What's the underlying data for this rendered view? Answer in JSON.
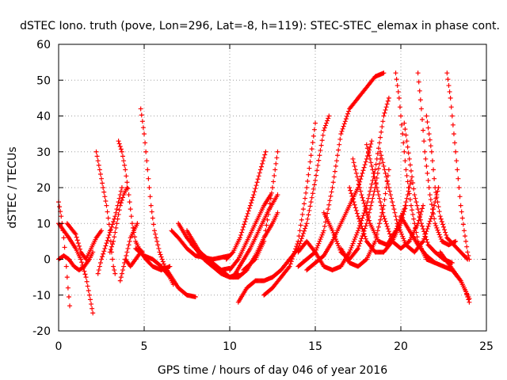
{
  "chart_data": {
    "type": "scatter",
    "title": "dSTEC Iono. truth (pove, Lon=296, Lat=-8, h=119): STEC-STEC_elemax in phase cont.",
    "xlabel": "GPS time / hours of day 046 of year 2016",
    "ylabel": "dSTEC  / TECUs",
    "xlim": [
      0,
      25
    ],
    "ylim": [
      -20,
      60
    ],
    "xticks": [
      0,
      5,
      10,
      15,
      20,
      25
    ],
    "yticks": [
      -20,
      -10,
      0,
      10,
      20,
      30,
      40,
      50,
      60
    ],
    "grid": true,
    "marker": "plus",
    "color": "#ff0000",
    "series": [
      {
        "points": [
          [
            0.0,
            16
          ],
          [
            0.15,
            12
          ],
          [
            0.3,
            6
          ],
          [
            0.45,
            -2
          ],
          [
            0.55,
            -8
          ],
          [
            0.65,
            -13
          ]
        ]
      },
      {
        "points": [
          [
            0.0,
            10
          ],
          [
            0.3,
            8
          ],
          [
            0.6,
            6
          ],
          [
            1.0,
            3
          ],
          [
            1.3,
            0
          ],
          [
            1.6,
            -5
          ],
          [
            1.8,
            -10
          ],
          [
            2.0,
            -15
          ]
        ]
      },
      {
        "points": [
          [
            0.0,
            0
          ],
          [
            0.3,
            1
          ],
          [
            0.6,
            0
          ],
          [
            0.9,
            -2
          ],
          [
            1.2,
            -3
          ],
          [
            1.5,
            -2
          ],
          [
            1.8,
            0
          ],
          [
            2.0,
            2
          ]
        ]
      },
      {
        "points": [
          [
            0.5,
            10
          ],
          [
            1.0,
            7
          ],
          [
            1.3,
            2
          ],
          [
            1.6,
            0
          ],
          [
            1.8,
            2
          ],
          [
            2.0,
            4
          ],
          [
            2.2,
            6
          ],
          [
            2.5,
            8
          ]
        ]
      },
      {
        "points": [
          [
            2.2,
            30
          ],
          [
            2.4,
            25
          ],
          [
            2.6,
            20
          ],
          [
            2.8,
            15
          ],
          [
            3.0,
            8
          ],
          [
            3.1,
            2
          ],
          [
            3.2,
            -2
          ],
          [
            3.3,
            -4
          ]
        ]
      },
      {
        "points": [
          [
            2.3,
            -4
          ],
          [
            2.5,
            0
          ],
          [
            2.7,
            3
          ],
          [
            2.9,
            6
          ],
          [
            3.1,
            9
          ],
          [
            3.3,
            12
          ],
          [
            3.5,
            16
          ],
          [
            3.7,
            20
          ]
        ]
      },
      {
        "points": [
          [
            3.5,
            33
          ],
          [
            3.7,
            30
          ],
          [
            3.9,
            25
          ],
          [
            4.1,
            18
          ],
          [
            4.3,
            10
          ],
          [
            4.5,
            5
          ],
          [
            4.7,
            3
          ],
          [
            4.9,
            2
          ]
        ]
      },
      {
        "points": [
          [
            3.6,
            -6
          ],
          [
            3.8,
            -2
          ],
          [
            4.0,
            2
          ],
          [
            4.2,
            6
          ],
          [
            4.4,
            8
          ],
          [
            4.6,
            10
          ]
        ]
      },
      {
        "points": [
          [
            3.0,
            2
          ],
          [
            3.2,
            5
          ],
          [
            3.4,
            10
          ],
          [
            3.6,
            15
          ],
          [
            3.8,
            18
          ],
          [
            4.0,
            20
          ]
        ]
      },
      {
        "points": [
          [
            3.9,
            0
          ],
          [
            4.2,
            -2
          ],
          [
            4.5,
            0
          ],
          [
            4.8,
            2
          ],
          [
            5.1,
            0
          ],
          [
            5.5,
            -2
          ],
          [
            6.0,
            -3
          ],
          [
            6.5,
            -2
          ]
        ]
      },
      {
        "points": [
          [
            4.8,
            42
          ],
          [
            5.0,
            35
          ],
          [
            5.2,
            25
          ],
          [
            5.4,
            15
          ],
          [
            5.6,
            8
          ],
          [
            5.9,
            2
          ],
          [
            6.2,
            -2
          ],
          [
            6.6,
            -5
          ],
          [
            7.0,
            -8
          ],
          [
            7.5,
            -10
          ],
          [
            8.0,
            -10.5
          ]
        ]
      },
      {
        "points": [
          [
            4.5,
            3
          ],
          [
            5.0,
            1
          ],
          [
            5.5,
            0
          ],
          [
            6.0,
            -2
          ],
          [
            6.5,
            -5
          ],
          [
            6.7,
            -7
          ]
        ]
      },
      {
        "points": [
          [
            6.6,
            8
          ],
          [
            7.0,
            6
          ],
          [
            7.5,
            3
          ],
          [
            8.0,
            1
          ],
          [
            8.5,
            0.5
          ],
          [
            9.0,
            0
          ],
          [
            9.5,
            0.5
          ],
          [
            10.0,
            1
          ]
        ]
      },
      {
        "points": [
          [
            7.0,
            10
          ],
          [
            7.5,
            6
          ],
          [
            8.0,
            3
          ],
          [
            8.5,
            0
          ],
          [
            9.0,
            -2
          ],
          [
            9.5,
            -3
          ],
          [
            10.0,
            -2.5
          ]
        ]
      },
      {
        "points": [
          [
            7.5,
            8
          ],
          [
            8.0,
            4
          ],
          [
            8.5,
            0
          ],
          [
            9.0,
            -2
          ],
          [
            9.5,
            -4
          ],
          [
            10.0,
            -5
          ],
          [
            10.5,
            -4
          ]
        ]
      },
      {
        "points": [
          [
            7.8,
            4
          ],
          [
            8.5,
            1
          ],
          [
            9.0,
            -1
          ],
          [
            9.5,
            -3
          ],
          [
            10.0,
            -5
          ],
          [
            10.5,
            -5
          ],
          [
            11.0,
            -3
          ]
        ]
      },
      {
        "points": [
          [
            9.8,
            0
          ],
          [
            10.2,
            2
          ],
          [
            10.6,
            6
          ],
          [
            11.0,
            12
          ],
          [
            11.4,
            18
          ],
          [
            11.8,
            25
          ],
          [
            12.1,
            30
          ]
        ]
      },
      {
        "points": [
          [
            10.0,
            -3
          ],
          [
            10.5,
            0
          ],
          [
            11.0,
            5
          ],
          [
            11.5,
            10
          ],
          [
            12.0,
            15
          ],
          [
            12.4,
            18
          ]
        ]
      },
      {
        "points": [
          [
            10.2,
            -5
          ],
          [
            10.7,
            -1
          ],
          [
            11.2,
            3
          ],
          [
            11.7,
            8
          ],
          [
            12.2,
            13
          ],
          [
            12.8,
            18
          ]
        ]
      },
      {
        "points": [
          [
            10.5,
            -5
          ],
          [
            11.0,
            -3
          ],
          [
            11.5,
            1
          ],
          [
            12.0,
            6
          ],
          [
            12.5,
            10
          ],
          [
            12.8,
            13
          ]
        ]
      },
      {
        "points": [
          [
            10.8,
            -3
          ],
          [
            11.5,
            0
          ],
          [
            12.0,
            5
          ],
          [
            12.5,
            20
          ],
          [
            12.8,
            30
          ]
        ]
      },
      {
        "points": [
          [
            10.5,
            -12
          ],
          [
            11.0,
            -8
          ],
          [
            11.5,
            -6
          ],
          [
            12.0,
            -6
          ],
          [
            12.5,
            -5
          ]
        ]
      },
      {
        "points": [
          [
            12.0,
            -10
          ],
          [
            12.5,
            -8
          ],
          [
            13.0,
            -5
          ],
          [
            13.5,
            -2
          ],
          [
            14.0,
            5
          ],
          [
            14.5,
            20
          ],
          [
            15.0,
            38
          ]
        ]
      },
      {
        "points": [
          [
            12.5,
            -5
          ],
          [
            13.0,
            -3
          ],
          [
            13.5,
            0
          ],
          [
            14.0,
            3
          ],
          [
            14.5,
            10
          ],
          [
            15.0,
            22
          ],
          [
            15.5,
            36
          ],
          [
            15.8,
            40
          ]
        ]
      },
      {
        "points": [
          [
            14.0,
            -2
          ],
          [
            14.5,
            0
          ],
          [
            15.0,
            2
          ],
          [
            15.5,
            8
          ],
          [
            16.0,
            20
          ],
          [
            16.5,
            35
          ],
          [
            17.0,
            42
          ],
          [
            17.5,
            45
          ],
          [
            18.0,
            48
          ],
          [
            18.5,
            51
          ],
          [
            19.0,
            52
          ]
        ]
      },
      {
        "points": [
          [
            14.0,
            2
          ],
          [
            14.5,
            5
          ],
          [
            15.0,
            2
          ],
          [
            15.5,
            -2
          ],
          [
            16.0,
            -3
          ],
          [
            16.5,
            -2
          ],
          [
            17.0,
            2
          ],
          [
            17.5,
            8
          ],
          [
            18.0,
            15
          ],
          [
            18.5,
            25
          ],
          [
            19.0,
            40
          ],
          [
            19.3,
            45
          ]
        ]
      },
      {
        "points": [
          [
            14.5,
            -3
          ],
          [
            15.0,
            -1
          ],
          [
            15.5,
            1
          ],
          [
            16.0,
            5
          ],
          [
            16.5,
            10
          ],
          [
            17.0,
            15
          ],
          [
            17.5,
            20
          ],
          [
            18.0,
            28
          ],
          [
            18.3,
            33
          ]
        ]
      },
      {
        "points": [
          [
            15.5,
            13
          ],
          [
            16.0,
            8
          ],
          [
            16.5,
            2
          ],
          [
            17.0,
            0
          ],
          [
            17.5,
            3
          ],
          [
            18.0,
            10
          ],
          [
            18.5,
            20
          ],
          [
            18.8,
            28
          ]
        ]
      },
      {
        "points": [
          [
            16.5,
            3
          ],
          [
            17.0,
            -1
          ],
          [
            17.5,
            -2
          ],
          [
            18.0,
            0
          ],
          [
            18.5,
            5
          ],
          [
            19.0,
            15
          ],
          [
            19.3,
            25
          ]
        ]
      },
      {
        "points": [
          [
            17.0,
            20
          ],
          [
            17.5,
            12
          ],
          [
            18.0,
            5
          ],
          [
            18.5,
            2
          ],
          [
            19.0,
            2
          ],
          [
            19.5,
            5
          ],
          [
            20.0,
            10
          ],
          [
            20.3,
            15
          ]
        ]
      },
      {
        "points": [
          [
            17.2,
            28
          ],
          [
            17.7,
            18
          ],
          [
            18.2,
            10
          ],
          [
            18.7,
            5
          ],
          [
            19.2,
            4
          ],
          [
            19.7,
            8
          ],
          [
            20.2,
            14
          ],
          [
            20.6,
            22
          ]
        ]
      },
      {
        "points": [
          [
            18.0,
            32
          ],
          [
            18.5,
            22
          ],
          [
            19.0,
            12
          ],
          [
            19.5,
            5
          ],
          [
            20.0,
            3
          ],
          [
            20.5,
            5
          ],
          [
            21.0,
            10
          ],
          [
            21.3,
            15
          ]
        ]
      },
      {
        "points": [
          [
            18.8,
            30
          ],
          [
            19.3,
            20
          ],
          [
            19.8,
            10
          ],
          [
            20.3,
            4
          ],
          [
            20.8,
            2
          ],
          [
            21.3,
            5
          ],
          [
            21.8,
            12
          ],
          [
            22.2,
            20
          ]
        ]
      },
      {
        "points": [
          [
            19.7,
            52
          ],
          [
            19.9,
            45
          ],
          [
            20.1,
            35
          ],
          [
            20.3,
            25
          ],
          [
            20.6,
            15
          ],
          [
            21.0,
            5
          ],
          [
            21.5,
            0
          ],
          [
            22.0,
            -1
          ]
        ]
      },
      {
        "points": [
          [
            20.2,
            38
          ],
          [
            20.5,
            28
          ],
          [
            20.8,
            18
          ],
          [
            21.2,
            10
          ],
          [
            21.6,
            4
          ],
          [
            22.0,
            2
          ],
          [
            22.5,
            0
          ],
          [
            23.0,
            -1
          ]
        ]
      },
      {
        "points": [
          [
            21.0,
            52
          ],
          [
            21.2,
            42
          ],
          [
            21.4,
            30
          ],
          [
            21.7,
            18
          ],
          [
            22.0,
            10
          ],
          [
            22.4,
            5
          ],
          [
            22.8,
            4
          ],
          [
            23.2,
            5
          ]
        ]
      },
      {
        "points": [
          [
            21.5,
            40
          ],
          [
            21.8,
            30
          ],
          [
            22.0,
            20
          ],
          [
            22.3,
            12
          ],
          [
            22.7,
            6
          ],
          [
            23.1,
            4
          ],
          [
            23.5,
            2
          ],
          [
            23.9,
            0
          ]
        ]
      },
      {
        "points": [
          [
            22.7,
            52
          ],
          [
            22.9,
            45
          ],
          [
            23.1,
            35
          ],
          [
            23.3,
            25
          ],
          [
            23.5,
            15
          ],
          [
            23.7,
            8
          ],
          [
            23.9,
            2
          ],
          [
            24.0,
            0
          ]
        ]
      },
      {
        "points": [
          [
            20.0,
            12
          ],
          [
            20.5,
            8
          ],
          [
            21.0,
            4
          ],
          [
            21.5,
            1
          ],
          [
            22.0,
            -1
          ],
          [
            22.5,
            -2
          ],
          [
            23.0,
            -3
          ],
          [
            23.5,
            -6
          ],
          [
            23.8,
            -9
          ],
          [
            24.0,
            -12
          ]
        ]
      },
      {
        "points": [
          [
            22.3,
            2
          ],
          [
            22.6,
            0
          ],
          [
            22.9,
            -2
          ],
          [
            23.2,
            -4
          ],
          [
            23.5,
            -6
          ],
          [
            23.8,
            -9
          ],
          [
            24.0,
            -11
          ]
        ]
      }
    ]
  }
}
